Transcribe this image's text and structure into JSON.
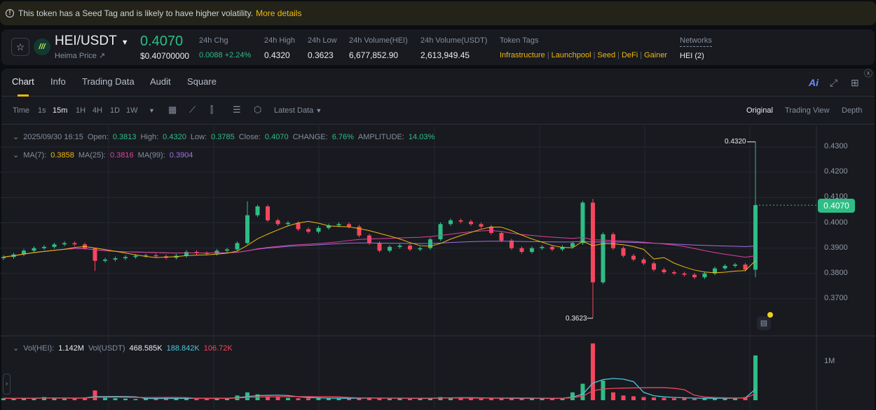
{
  "banner": {
    "text": "This token has a Seed Tag and is likely to have higher volatility.",
    "link": "More details"
  },
  "header": {
    "pair": "HEI/USDT",
    "subtitle": "Heima Price ↗",
    "price": "0.4070",
    "price_usd": "$0.40700000",
    "stats": [
      {
        "label": "24h Chg",
        "value": "0.0088 +2.24%"
      },
      {
        "label": "24h High",
        "value": "0.4320"
      },
      {
        "label": "24h Low",
        "value": "0.3623"
      },
      {
        "label": "24h Volume(HEI)",
        "value": "6,677,852.90"
      },
      {
        "label": "24h Volume(USDT)",
        "value": "2,613,949.45"
      }
    ],
    "tags_label": "Token Tags",
    "tags": [
      "Infrastructure",
      "Launchpool",
      "Seed",
      "DeFi",
      "Gainer"
    ],
    "networks_label": "Networks",
    "networks": "HEI (2)"
  },
  "tabs": [
    "Chart",
    "Info",
    "Trading Data",
    "Audit",
    "Square"
  ],
  "toolbar": {
    "intervals": [
      "Time",
      "1s",
      "15m",
      "1H",
      "4H",
      "1D",
      "1W"
    ],
    "active_interval": "15m",
    "latest": "Latest Data",
    "views": [
      "Original",
      "Trading View",
      "Depth"
    ],
    "ai": "Ai"
  },
  "ohlc": {
    "date": "2025/09/30 16:15",
    "open_l": "Open:",
    "open": "0.3813",
    "high_l": "High:",
    "high": "0.4320",
    "low_l": "Low:",
    "low": "0.3785",
    "close_l": "Close:",
    "close": "0.4070",
    "change_l": "CHANGE:",
    "change": "6.76%",
    "amp_l": "AMPLITUDE:",
    "amp": "14.03%"
  },
  "ma": {
    "ma7_l": "MA(7):",
    "ma7": "0.3858",
    "ma25_l": "MA(25):",
    "ma25": "0.3816",
    "ma99_l": "MA(99):",
    "ma99": "0.3904"
  },
  "vol": {
    "hei_l": "Vol(HEI):",
    "hei": "1.142M",
    "usdt_l": "Vol(USDT)",
    "usdt": "468.585K",
    "ma1": "188.842K",
    "ma2": "106.72K",
    "axis": "1M"
  },
  "colors": {
    "up": "#2ebd85",
    "down": "#f6465d",
    "ma7": "#f0b90b",
    "ma25": "#e040a0",
    "ma99": "#a070e0",
    "vma1": "#4ec6d8",
    "vma2": "#f6465d",
    "accent": "#f0b90b"
  },
  "chart_data": {
    "type": "candlestick",
    "y_ticks": [
      "0.4300",
      "0.4200",
      "0.4100",
      "0.4000",
      "0.3900",
      "0.3800",
      "0.3700"
    ],
    "ylim": [
      0.36,
      0.435
    ],
    "max_label": "0.4320",
    "min_label": "0.3623",
    "last_price": "0.4070",
    "first_open": 0.386,
    "closes": [
      0.3865,
      0.3875,
      0.389,
      0.39,
      0.3905,
      0.3915,
      0.392,
      0.3915,
      0.39,
      0.385,
      0.3855,
      0.386,
      0.3865,
      0.387,
      0.3872,
      0.3868,
      0.3862,
      0.387,
      0.3885,
      0.388,
      0.3878,
      0.389,
      0.3895,
      0.392,
      0.403,
      0.4065,
      0.401,
      0.3995,
      0.4,
      0.3975,
      0.3965,
      0.398,
      0.399,
      0.3995,
      0.3985,
      0.395,
      0.392,
      0.389,
      0.3905,
      0.391,
      0.3895,
      0.39,
      0.3935,
      0.3995,
      0.401,
      0.4005,
      0.3995,
      0.3985,
      0.396,
      0.393,
      0.39,
      0.3885,
      0.39,
      0.3905,
      0.3895,
      0.3905,
      0.392,
      0.408,
      0.3765,
      0.3955,
      0.39,
      0.387,
      0.3855,
      0.384,
      0.3815,
      0.3805,
      0.38,
      0.3795,
      0.3785,
      0.38,
      0.382,
      0.383,
      0.3835,
      0.3815,
      0.407
    ],
    "wick_overrides": {
      "9": [
        0.3895,
        0.381
      ],
      "24": [
        0.4085,
        0.3915
      ],
      "58": [
        0.4095,
        0.3623
      ],
      "74": [
        0.432,
        0.3785
      ]
    },
    "volumes": [
      0.05,
      0.04,
      0.06,
      0.05,
      0.08,
      0.05,
      0.04,
      0.05,
      0.07,
      0.25,
      0.06,
      0.05,
      0.04,
      0.03,
      0.05,
      0.04,
      0.06,
      0.05,
      0.04,
      0.05,
      0.04,
      0.06,
      0.05,
      0.12,
      0.2,
      0.15,
      0.1,
      0.08,
      0.06,
      0.05,
      0.05,
      0.06,
      0.05,
      0.04,
      0.05,
      0.06,
      0.07,
      0.05,
      0.04,
      0.05,
      0.04,
      0.05,
      0.06,
      0.08,
      0.07,
      0.06,
      0.05,
      0.04,
      0.05,
      0.06,
      0.05,
      0.04,
      0.05,
      0.04,
      0.05,
      0.06,
      0.2,
      0.42,
      1.45,
      0.5,
      0.2,
      0.12,
      0.1,
      0.08,
      0.07,
      0.06,
      0.05,
      0.05,
      0.04,
      0.05,
      0.06,
      0.05,
      0.06,
      0.08,
      1.142
    ],
    "vol_ylim": [
      0,
      1.6
    ]
  }
}
